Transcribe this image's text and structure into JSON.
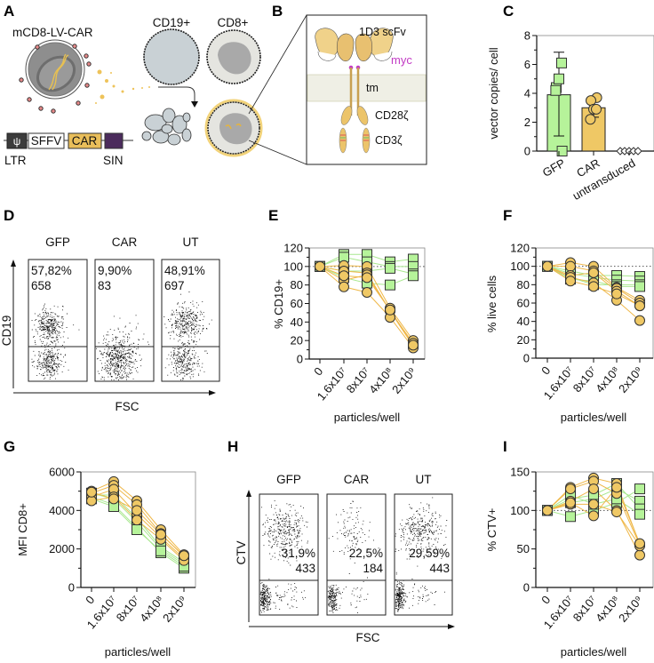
{
  "panel_letters": {
    "A": "A",
    "B": "B",
    "C": "C",
    "D": "D",
    "E": "E",
    "F": "F",
    "G": "G",
    "H": "H",
    "I": "I"
  },
  "panel_a": {
    "vector_name": "mCD8-LV-CAR",
    "cell_labels": [
      "CD19+",
      "CD8+"
    ],
    "genome_elements": [
      "ψ",
      "SFFV",
      "CAR"
    ],
    "ltr_label": "LTR",
    "sin_label": "SIN"
  },
  "panel_b": {
    "scfv_label": "1D3 scFv",
    "myc_label": "myc",
    "tm_label": "tm",
    "cd28_label": "CD28ζ",
    "cd3_label": "CD3ζ"
  },
  "colors": {
    "gfp": "#b6f39a",
    "gfp_line": "#a9e88f",
    "car": "#efc865",
    "car_line": "#efb84a",
    "myc": "#c23bc4"
  },
  "flow": {
    "D": {
      "y_axis": "CD19",
      "x_axis": "FSC",
      "plots": [
        {
          "title": "GFP",
          "percent": "57,82%",
          "count": "658"
        },
        {
          "title": "CAR",
          "percent": "9,90%",
          "count": "83"
        },
        {
          "title": "UT",
          "percent": "48,91%",
          "count": "697"
        }
      ]
    },
    "H": {
      "y_axis": "CTV",
      "x_axis": "FSC",
      "plots": [
        {
          "title": "GFP",
          "percent": "31,9%",
          "count": "433"
        },
        {
          "title": "CAR",
          "percent": "22,5%",
          "count": "184"
        },
        {
          "title": "UT",
          "percent": "29,59%",
          "count": "443"
        }
      ]
    }
  },
  "chart_data": [
    {
      "id": "C",
      "type": "bar",
      "ylabel": "vector copies/ cell",
      "xlabel": "",
      "categories": [
        "GFP",
        "CAR",
        "untransduced"
      ],
      "values": [
        3.9,
        3.0,
        0
      ],
      "error_low": [
        1.05,
        2.35,
        0
      ],
      "error_high": [
        6.85,
        3.75,
        0
      ],
      "points": [
        [
          0,
          4.4,
          5.0,
          6.1,
          4.2
        ],
        [
          3.7,
          3.5,
          2.9,
          2.9,
          2.2
        ],
        [
          0,
          0,
          0,
          0,
          0
        ]
      ],
      "markers": [
        "square",
        "circle",
        "diamond"
      ],
      "ylim": [
        0,
        8
      ],
      "yticks": [
        0,
        2,
        4,
        6,
        8
      ]
    },
    {
      "id": "E",
      "type": "line",
      "ylabel": "% CD19+",
      "xlabel": "particles/well",
      "categories": [
        "0",
        "1.6x10⁷",
        "8x10⁷",
        "4x10⁸",
        "2x10⁹"
      ],
      "ylim": [
        0,
        120
      ],
      "yticks": [
        0,
        20,
        40,
        60,
        80,
        100,
        120
      ],
      "ref_line": 100,
      "series": [
        {
          "name": "GFP",
          "marker": "square",
          "replicates": [
            [
              100,
              113,
              113,
              105,
              108
            ],
            [
              100,
              110,
              105,
              100,
              100
            ],
            [
              100,
              95,
              95,
              98,
              92
            ],
            [
              100,
              88,
              82,
              80,
              90
            ]
          ]
        },
        {
          "name": "CAR",
          "marker": "circle",
          "replicates": [
            [
              100,
              101,
              100,
              55,
              20
            ],
            [
              100,
              95,
              93,
              52,
              17
            ],
            [
              100,
              85,
              91,
              52,
              14
            ],
            [
              100,
              78,
              72,
              45,
              12
            ],
            [
              100,
              90,
              88,
              53,
              15
            ]
          ]
        }
      ]
    },
    {
      "id": "F",
      "type": "line",
      "ylabel": "% live cells",
      "xlabel": "particles/well",
      "categories": [
        "0",
        "1.6x10⁷",
        "8x10⁷",
        "4x10⁸",
        "2x10⁹"
      ],
      "ylim": [
        0,
        120
      ],
      "yticks": [
        0,
        20,
        40,
        60,
        80,
        100,
        120
      ],
      "ref_line": 100,
      "series": [
        {
          "name": "GFP",
          "marker": "square",
          "replicates": [
            [
              100,
              95,
              90,
              90,
              89
            ],
            [
              100,
              92,
              88,
              85,
              84
            ],
            [
              100,
              88,
              80,
              80,
              80
            ],
            [
              100,
              86,
              84,
              78,
              78
            ]
          ]
        },
        {
          "name": "CAR",
          "marker": "circle",
          "replicates": [
            [
              100,
              104,
              100,
              77,
              63
            ],
            [
              100,
              100,
              95,
              76,
              60
            ],
            [
              100,
              90,
              93,
              73,
              57
            ],
            [
              100,
              88,
              82,
              63,
              41
            ],
            [
              100,
              84,
              78,
              70,
              57
            ]
          ]
        }
      ]
    },
    {
      "id": "G",
      "type": "line",
      "ylabel": "MFI CD8+",
      "xlabel": "particles/well",
      "categories": [
        "0",
        "1.6x10⁷",
        "8x10⁷",
        "4x10⁸",
        "2x10⁹"
      ],
      "ylim": [
        0,
        6000
      ],
      "yticks": [
        0,
        2000,
        4000,
        6000
      ],
      "ref_line": null,
      "series": [
        {
          "name": "GFP",
          "marker": "square",
          "replicates": [
            [
              4900,
              4600,
              3400,
              2000,
              1200
            ],
            [
              4700,
              4300,
              3100,
              1800,
              1000
            ],
            [
              4800,
              4800,
              3600,
              2100,
              1300
            ],
            [
              4600,
              4200,
              3000,
              1900,
              1100
            ]
          ]
        },
        {
          "name": "CAR",
          "marker": "circle",
          "replicates": [
            [
              5000,
              5500,
              4500,
              3000,
              1700
            ],
            [
              4900,
              5300,
              4300,
              2800,
              1600
            ],
            [
              4700,
              5100,
              3800,
              2600,
              1500
            ],
            [
              4500,
              4700,
              3500,
              2500,
              1400
            ],
            [
              4950,
              4600,
              4000,
              2750,
              1650
            ]
          ]
        }
      ]
    },
    {
      "id": "I",
      "type": "line",
      "ylabel": "% CTV+",
      "xlabel": "particles/well",
      "categories": [
        "0",
        "1.6x10⁷",
        "8x10⁷",
        "4x10⁸",
        "2x10⁹"
      ],
      "ylim": [
        0,
        150
      ],
      "yticks": [
        0,
        50,
        100,
        150
      ],
      "ref_line": 100,
      "series": [
        {
          "name": "GFP",
          "marker": "square",
          "replicates": [
            [
              100,
              92,
              100,
              110,
              128
            ],
            [
              100,
              110,
              115,
              128,
              112
            ],
            [
              100,
              115,
              120,
              135,
              102
            ],
            [
              100,
              120,
              108,
              115,
              95
            ]
          ]
        },
        {
          "name": "CAR",
          "marker": "circle",
          "replicates": [
            [
              100,
              130,
              142,
              135,
              56
            ],
            [
              100,
              128,
              138,
              122,
              55
            ],
            [
              100,
              112,
              128,
              100,
              42
            ],
            [
              100,
              108,
              108,
              98,
              54
            ],
            [
              100,
              110,
              93,
              130,
              57
            ]
          ]
        }
      ]
    }
  ]
}
